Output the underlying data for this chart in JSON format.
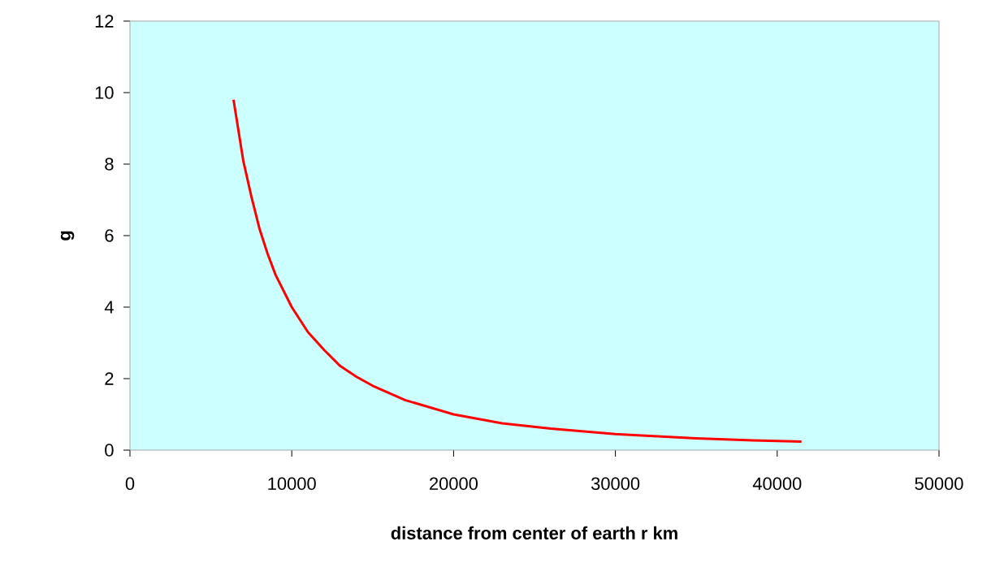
{
  "chart_data": {
    "type": "line",
    "xlabel": "distance from center of earth r km",
    "ylabel": "g",
    "x": [
      6400,
      7000,
      7500,
      8000,
      8500,
      9000,
      10000,
      11000,
      12000,
      13000,
      14000,
      15000,
      17000,
      20000,
      23000,
      26000,
      30000,
      35000,
      38500,
      41500
    ],
    "series": [
      {
        "color": "#ff0000",
        "values": [
          9.8,
          8.1,
          7.1,
          6.2,
          5.5,
          4.9,
          4.0,
          3.3,
          2.8,
          2.35,
          2.05,
          1.8,
          1.4,
          1.0,
          0.75,
          0.6,
          0.45,
          0.33,
          0.27,
          0.24
        ]
      }
    ],
    "xlim": [
      0,
      50000
    ],
    "ylim": [
      0,
      12
    ],
    "xticks": [
      0,
      10000,
      20000,
      30000,
      40000,
      50000
    ],
    "yticks": [
      0,
      2,
      4,
      6,
      8,
      10,
      12
    ],
    "marker": "none",
    "line_style": "solid",
    "grid": false
  }
}
